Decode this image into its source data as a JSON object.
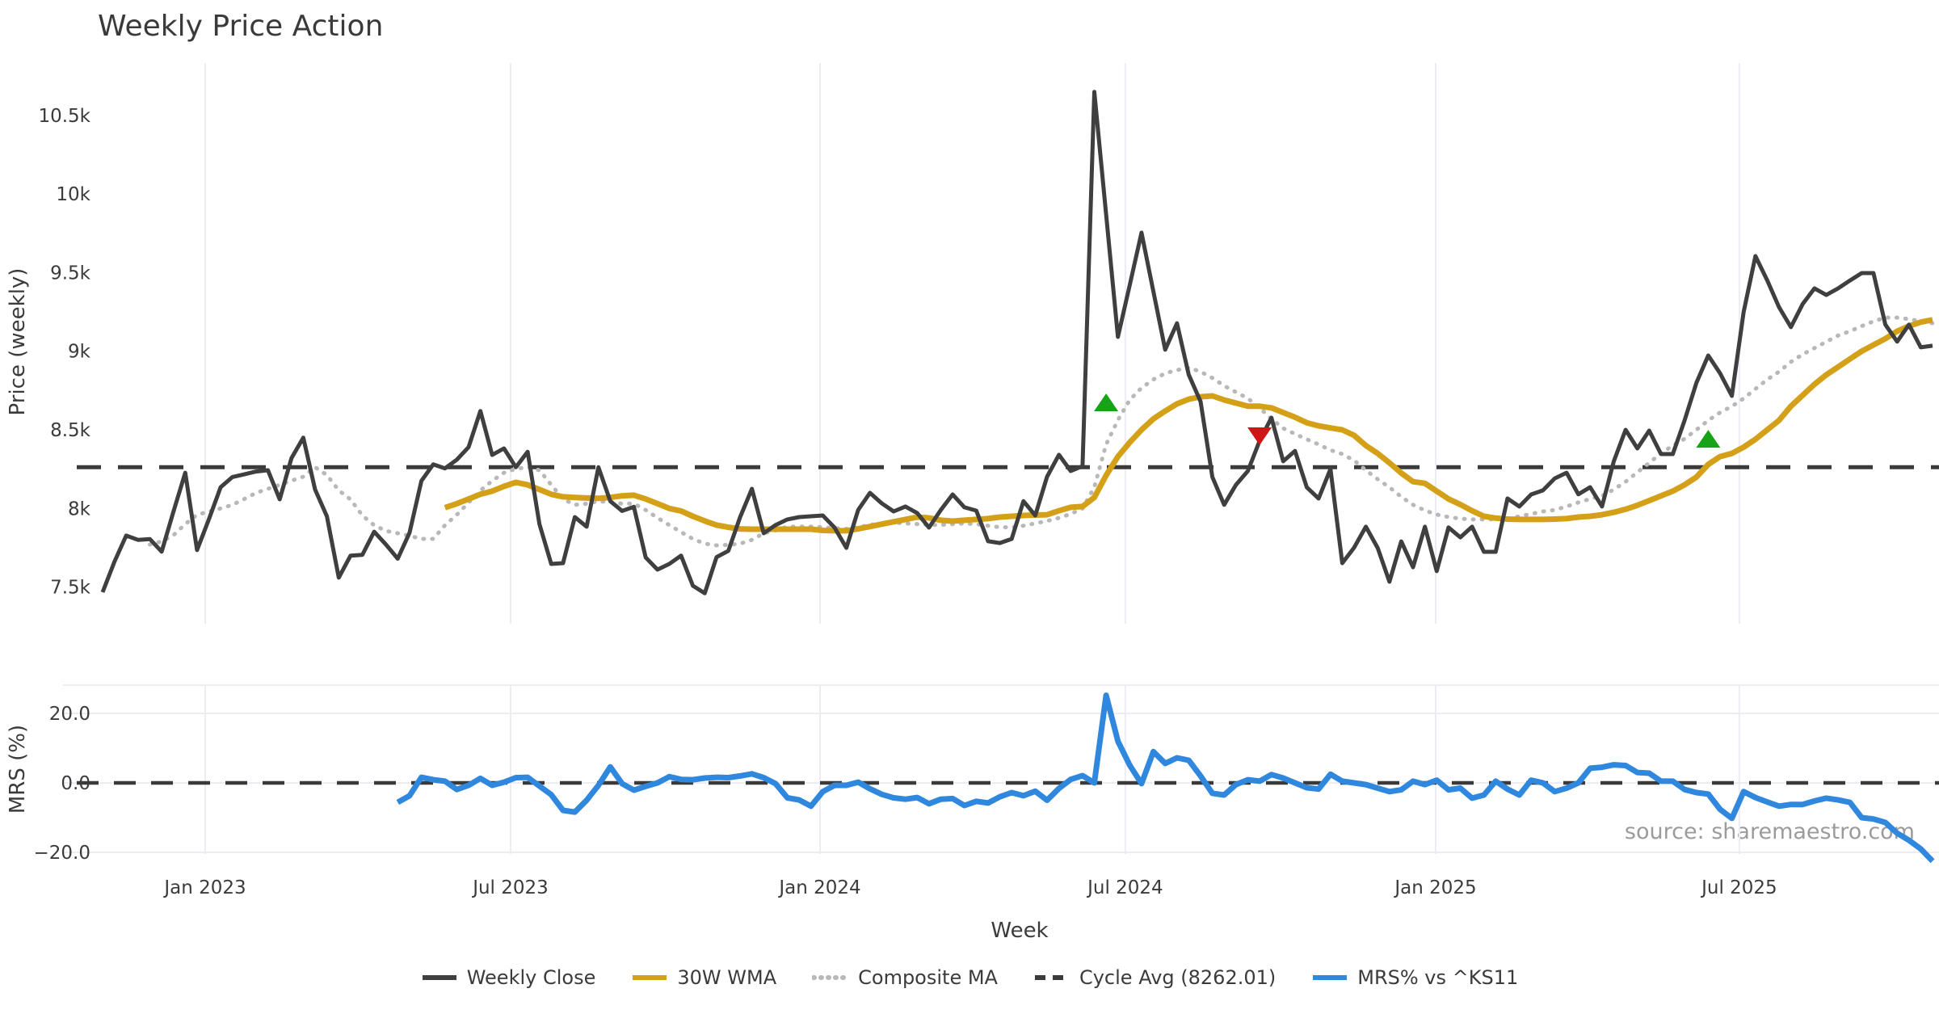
{
  "title": "Weekly Price Action",
  "source_text": "source: sharemaestro.com",
  "axis": {
    "price_label": "Price (weekly)",
    "mrs_label": "MRS (%)",
    "week_label": "Week"
  },
  "legend": {
    "items": [
      {
        "id": "weekly-close",
        "label": "Weekly Close",
        "color": "#3f3f3f",
        "style": "solid"
      },
      {
        "id": "wma-30w",
        "label": "30W WMA",
        "color": "#d4a017",
        "style": "solid"
      },
      {
        "id": "composite-ma",
        "label": "Composite MA",
        "color": "#b8b8b8",
        "style": "dotted"
      },
      {
        "id": "cycle-avg",
        "label": "Cycle Avg (8262.01)",
        "color": "#3a3a3a",
        "style": "dashed"
      },
      {
        "id": "mrs",
        "label": "MRS% vs ^KS11",
        "color": "#2f87de",
        "style": "solid"
      }
    ]
  },
  "chart_data": {
    "type": "line",
    "title": "Weekly Price Action",
    "xlabel": "Week",
    "ylabel_top": "Price (weekly)",
    "ylabel_bottom": "MRS (%)",
    "grid": "vertical-both-panels-plus-horizontal-bottom",
    "legend_position": "bottom-center",
    "colors": {
      "grid": "#ececf2",
      "dashed": "#3a3a3a"
    },
    "cycle_avg": {
      "label": "Cycle Avg (8262.01)",
      "value": 8262.01
    },
    "x_ticks": [
      {
        "label": "Jan 2023",
        "week": 8.69
      },
      {
        "label": "Jul 2023",
        "week": 34.56
      },
      {
        "label": "Jan 2024",
        "week": 60.77
      },
      {
        "label": "Jul 2024",
        "week": 86.63
      },
      {
        "label": "Jan 2025",
        "week": 112.91
      },
      {
        "label": "Jul 2025",
        "week": 138.64
      }
    ],
    "y_ticks_price": [
      {
        "label": "7.5k",
        "value": 7500
      },
      {
        "label": "8k",
        "value": 8000
      },
      {
        "label": "8.5k",
        "value": 8500
      },
      {
        "label": "9k",
        "value": 9000
      },
      {
        "label": "9.5k",
        "value": 9500
      },
      {
        "label": "10k",
        "value": 10000
      },
      {
        "label": "10.5k",
        "value": 10500
      }
    ],
    "y_ticks_mrs": [
      {
        "label": "20.0",
        "value": 20
      },
      {
        "label": "0.0",
        "value": 0
      },
      {
        "label": "−20.0",
        "value": -20
      }
    ],
    "mrs_ylim": [
      -27,
      28
    ],
    "price_ylim": [
      7250,
      10950
    ],
    "series": [
      {
        "id": "weekly-close",
        "name": "Weekly Close",
        "panel": "top",
        "color": "#3f3f3f",
        "style": "solid",
        "width": 5,
        "start_week": 0,
        "values": [
          7467,
          7660,
          7827,
          7800,
          7805,
          7725,
          7980,
          8227,
          7735,
          7930,
          8135,
          8200,
          8217,
          8235,
          8243,
          8058,
          8320,
          8450,
          8120,
          7950,
          7560,
          7700,
          7705,
          7852,
          7770,
          7680,
          7845,
          8175,
          8280,
          8255,
          8310,
          8390,
          8620,
          8340,
          8382,
          8262,
          8360,
          7900,
          7647,
          7652,
          7945,
          7884,
          8262,
          8046,
          7984,
          8010,
          7688,
          7611,
          7647,
          7700,
          7508,
          7460,
          7690,
          7730,
          7945,
          8125,
          7842,
          7894,
          7930,
          7945,
          7950,
          7955,
          7878,
          7749,
          7990,
          8099,
          8032,
          7981,
          8012,
          7970,
          7878,
          7990,
          8089,
          8007,
          7986,
          7791,
          7780,
          7806,
          8046,
          7955,
          8202,
          8341,
          8238,
          8269,
          10650,
          9870,
          9091,
          9420,
          9754,
          9380,
          9010,
          9178,
          8850,
          8680,
          8200,
          8023,
          8150,
          8238,
          8430,
          8577,
          8300,
          8366,
          8134,
          8063,
          8250,
          7652,
          7750,
          7884,
          7749,
          7534,
          7790,
          7626,
          7884,
          7601,
          7879,
          7816,
          7884,
          7724,
          7724,
          8063,
          8012,
          8089,
          8115,
          8191,
          8227,
          8090,
          8135,
          8012,
          8300,
          8500,
          8382,
          8495,
          8346,
          8346,
          8560,
          8800,
          8973,
          8860,
          8716,
          9250,
          9605,
          9451,
          9280,
          9153,
          9300,
          9400,
          9358,
          9400,
          9450,
          9497,
          9497,
          9169,
          9061,
          9169,
          9025,
          9035
        ]
      },
      {
        "id": "composite-ma",
        "name": "Composite MA",
        "panel": "top",
        "color": "#b8b8b8",
        "style": "dotted",
        "width": 5,
        "start_week": 4,
        "values": [
          7770,
          7790,
          7830,
          7900,
          7960,
          7980,
          8000,
          8023,
          8060,
          8099,
          8125,
          8150,
          8176,
          8202,
          8262,
          8212,
          8115,
          8057,
          7955,
          7893,
          7857,
          7842,
          7826,
          7806,
          7806,
          7893,
          7960,
          8037,
          8114,
          8175,
          8227,
          8252,
          8262,
          8243,
          8150,
          8060,
          8023,
          8030,
          8046,
          8040,
          8030,
          8030,
          7990,
          7940,
          7894,
          7850,
          7806,
          7776,
          7765,
          7768,
          7776,
          7800,
          7842,
          7860,
          7884,
          7884,
          7884,
          7880,
          7875,
          7870,
          7880,
          7895,
          7905,
          7910,
          7905,
          7900,
          7895,
          7895,
          7900,
          7905,
          7900,
          7890,
          7880,
          7880,
          7890,
          7905,
          7920,
          7940,
          7965,
          8000,
          8135,
          8407,
          8562,
          8690,
          8767,
          8820,
          8860,
          8880,
          8896,
          8870,
          8830,
          8780,
          8740,
          8700,
          8640,
          8570,
          8510,
          8474,
          8440,
          8407,
          8371,
          8346,
          8305,
          8243,
          8186,
          8134,
          8074,
          8023,
          7987,
          7961,
          7945,
          7935,
          7930,
          7930,
          7930,
          7935,
          7950,
          7965,
          7981,
          7990,
          8012,
          8038,
          8060,
          8080,
          8120,
          8170,
          8230,
          8290,
          8350,
          8400,
          8443,
          8500,
          8560,
          8610,
          8649,
          8700,
          8760,
          8820,
          8870,
          8932,
          8980,
          9020,
          9060,
          9100,
          9127,
          9160,
          9190,
          9214,
          9214,
          9204,
          9190,
          9178
        ]
      },
      {
        "id": "wma-30w",
        "name": "30W WMA",
        "panel": "top",
        "color": "#d4a017",
        "style": "solid",
        "width": 7,
        "start_week": 29,
        "values": [
          8005,
          8030,
          8060,
          8090,
          8110,
          8140,
          8166,
          8150,
          8120,
          8090,
          8074,
          8070,
          8066,
          8064,
          8070,
          8080,
          8084,
          8060,
          8030,
          8000,
          7984,
          7950,
          7920,
          7894,
          7880,
          7870,
          7868,
          7868,
          7868,
          7868,
          7868,
          7868,
          7860,
          7858,
          7858,
          7870,
          7885,
          7900,
          7915,
          7930,
          7945,
          7940,
          7925,
          7919,
          7925,
          7930,
          7935,
          7945,
          7950,
          7955,
          7958,
          7960,
          7985,
          8007,
          8012,
          8070,
          8210,
          8330,
          8420,
          8500,
          8570,
          8620,
          8665,
          8695,
          8710,
          8716,
          8690,
          8670,
          8650,
          8650,
          8640,
          8610,
          8580,
          8545,
          8525,
          8512,
          8500,
          8465,
          8400,
          8350,
          8290,
          8225,
          8170,
          8160,
          8110,
          8060,
          8025,
          7985,
          7950,
          7938,
          7932,
          7930,
          7930,
          7930,
          7932,
          7935,
          7945,
          7950,
          7960,
          7975,
          7995,
          8020,
          8050,
          8080,
          8110,
          8150,
          8200,
          8280,
          8330,
          8350,
          8390,
          8440,
          8500,
          8560,
          8650,
          8720,
          8790,
          8850,
          8900,
          8950,
          9000,
          9040,
          9080,
          9127,
          9160,
          9185,
          9200
        ]
      },
      {
        "id": "mrs",
        "name": "MRS% vs ^KS11",
        "panel": "bottom",
        "color": "#2f87de",
        "style": "solid",
        "width": 7,
        "start_week": 25,
        "values": [
          -5.6,
          -3.7,
          1.6,
          0.9,
          0.5,
          -1.9,
          -0.7,
          1.3,
          -0.7,
          0.2,
          1.5,
          1.6,
          -0.9,
          -3.4,
          -7.9,
          -8.4,
          -5.0,
          -0.7,
          4.6,
          -0.2,
          -2.1,
          -1.0,
          0.0,
          1.8,
          1.0,
          0.9,
          1.4,
          1.6,
          1.5,
          2.0,
          2.6,
          1.5,
          -0.2,
          -4.3,
          -4.9,
          -6.7,
          -2.5,
          -0.7,
          -0.7,
          0.2,
          -1.7,
          -3.3,
          -4.3,
          -4.7,
          -4.2,
          -6.0,
          -4.7,
          -4.5,
          -6.5,
          -5.3,
          -5.8,
          -4.0,
          -2.8,
          -3.7,
          -2.4,
          -5.0,
          -1.6,
          1.0,
          2.1,
          0.0,
          25.2,
          12.0,
          5.1,
          -0.2,
          9.0,
          5.6,
          7.2,
          6.5,
          2.0,
          -3.0,
          -3.5,
          -0.5,
          0.9,
          0.5,
          2.4,
          1.4,
          0.0,
          -1.4,
          -1.8,
          2.5,
          0.5,
          0.0,
          -0.5,
          -1.5,
          -2.5,
          -2.0,
          0.5,
          -0.5,
          0.8,
          -2.0,
          -1.5,
          -4.4,
          -3.5,
          0.5,
          -1.8,
          -3.5,
          0.8,
          0.0,
          -2.5,
          -1.5,
          0.0,
          4.2,
          4.5,
          5.2,
          5.0,
          3.0,
          2.8,
          0.5,
          0.5,
          -1.9,
          -2.8,
          -3.2,
          -7.6,
          -10.2,
          -2.5,
          -4.2,
          -5.5,
          -6.7,
          -6.2,
          -6.2,
          -5.2,
          -4.4,
          -4.9,
          -5.6,
          -10.0,
          -10.4,
          -11.4,
          -14.5,
          -16.5,
          -19.0,
          -22.5
        ]
      }
    ],
    "markers": [
      {
        "shape": "triangle-up",
        "color": "#17a317",
        "week": 85,
        "price": 8675
      },
      {
        "shape": "triangle-down",
        "color": "#cf1616",
        "week": 98,
        "price": 8459
      },
      {
        "shape": "triangle-up",
        "color": "#17a317",
        "week": 136,
        "price": 8443
      }
    ]
  }
}
